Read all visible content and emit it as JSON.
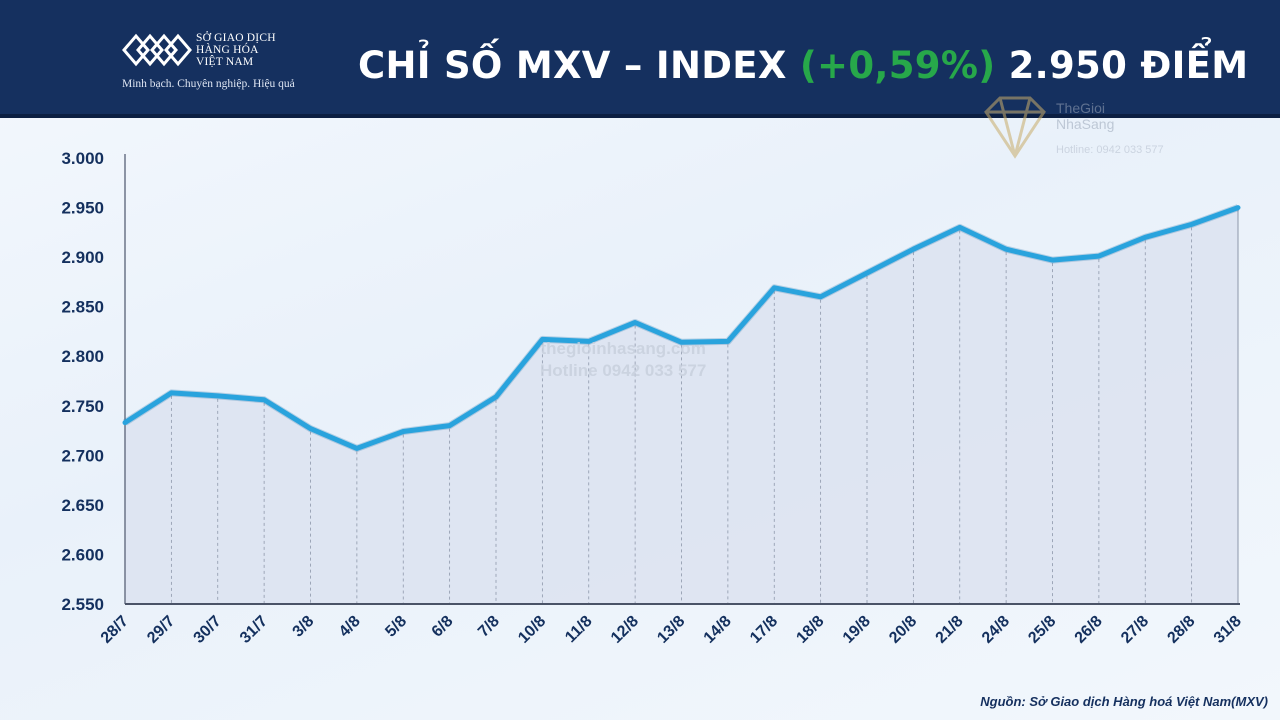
{
  "header": {
    "logo_line1": "SỞ GIAO DỊCH",
    "logo_line2": "HÀNG HÓA",
    "logo_line3": "VIỆT NAM",
    "logo_tagline": "Minh bạch. Chuyên nghiệp. Hiệu quả",
    "title_prefix": "CHỈ SỐ MXV – INDEX ",
    "title_change": "(+0,59%)",
    "title_suffix": " 2.950 ĐIỂM",
    "bg_color": "#15305f",
    "change_color": "#27a84a"
  },
  "watermark": {
    "brand_line1": "TheGioi",
    "brand_line2": "NhaSang",
    "hotline": "Hotline: 0942 033 577",
    "center_line1": "thegioinhasang.com",
    "center_line2": "Hotline 0942 033 577"
  },
  "chart_data": {
    "type": "area",
    "title": "CHỈ SỐ MXV – INDEX (+0,59%) 2.950 ĐIỂM",
    "xlabel": "",
    "ylabel": "",
    "categories": [
      "28/7",
      "29/7",
      "30/7",
      "31/7",
      "3/8",
      "4/8",
      "5/8",
      "6/8",
      "7/8",
      "10/8",
      "11/8",
      "12/8",
      "13/8",
      "14/8",
      "17/8",
      "18/8",
      "19/8",
      "20/8",
      "21/8",
      "24/8",
      "25/8",
      "26/8",
      "27/8",
      "28/8",
      "31/8"
    ],
    "series": [
      {
        "values": [
          2733,
          2763,
          2760,
          2756,
          2727,
          2707,
          2724,
          2730,
          2759,
          2817,
          2815,
          2834,
          2814,
          2815,
          2869,
          2860,
          2884,
          2908,
          2930,
          2908,
          2897,
          2901,
          2920,
          2933,
          2950
        ]
      }
    ],
    "ylim": [
      2550,
      3000
    ],
    "yticks": [
      "2.550",
      "2.600",
      "2.650",
      "2.700",
      "2.750",
      "2.800",
      "2.850",
      "2.900",
      "2.950",
      "3.000"
    ],
    "grid": "vertical dashed",
    "legend": "none",
    "line_color": "#29a3dd",
    "fill_color": "#dde3f1"
  },
  "source": "Nguồn: Sở Giao dịch Hàng hoá Việt Nam(MXV)"
}
